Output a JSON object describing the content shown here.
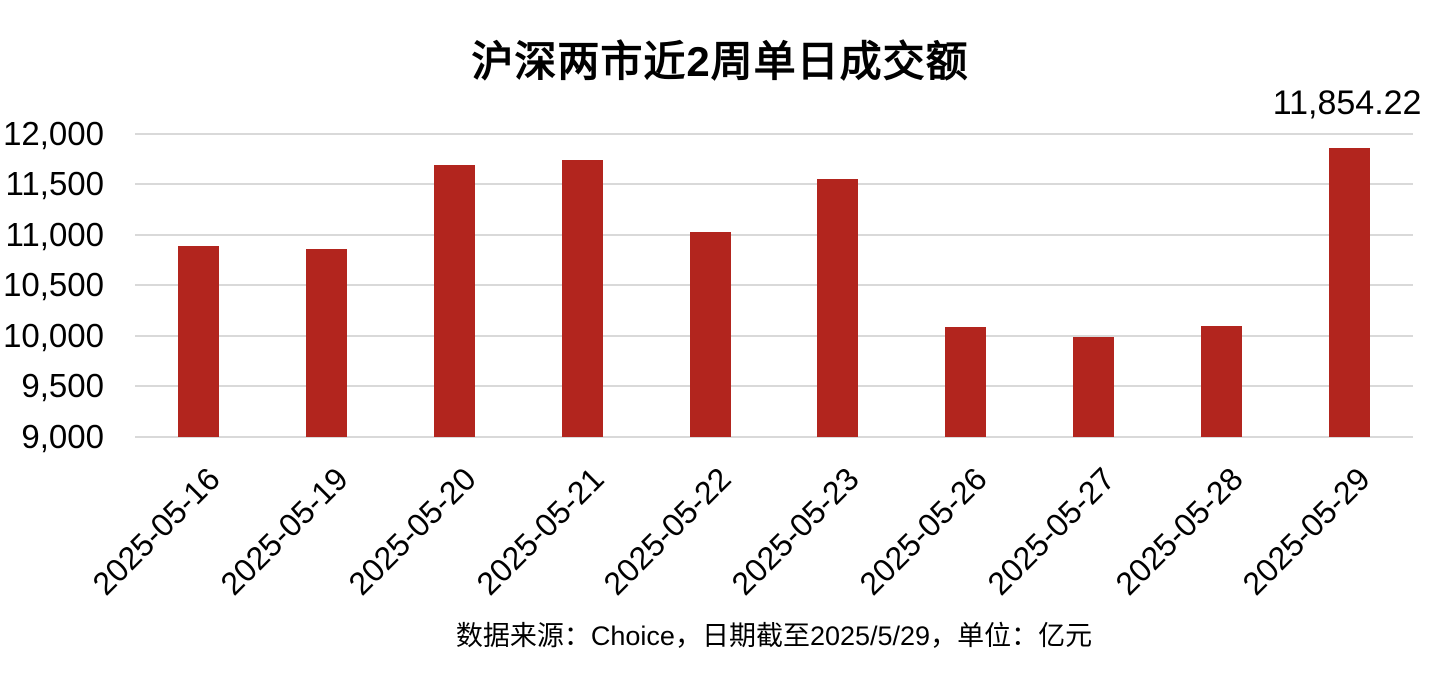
{
  "chart_data": {
    "type": "bar",
    "title": "沪深两市近2周单日成交额",
    "categories": [
      "2025-05-16",
      "2025-05-19",
      "2025-05-20",
      "2025-05-21",
      "2025-05-22",
      "2025-05-23",
      "2025-05-26",
      "2025-05-27",
      "2025-05-28",
      "2025-05-29"
    ],
    "values": [
      10890,
      10855,
      11690,
      11735,
      11025,
      11550,
      10090,
      9985,
      10095,
      11854.22
    ],
    "annotations": [
      {
        "category": "2025-05-29",
        "text": "11,854.22"
      }
    ],
    "xlabel": "",
    "ylabel": "",
    "y_axis": {
      "min": 9000,
      "max": 12000,
      "step": 500,
      "tick_labels": [
        "9,000",
        "9,500",
        "10,000",
        "10,500",
        "11,000",
        "11,500",
        "12,000"
      ]
    },
    "grid": true,
    "legend": "none",
    "bar_color": "#B2251E",
    "gridline_color": "#D9D9D9",
    "text_color": "#000000",
    "footer": "数据来源：Choice，日期截至2025/5/29，单位：亿元"
  }
}
